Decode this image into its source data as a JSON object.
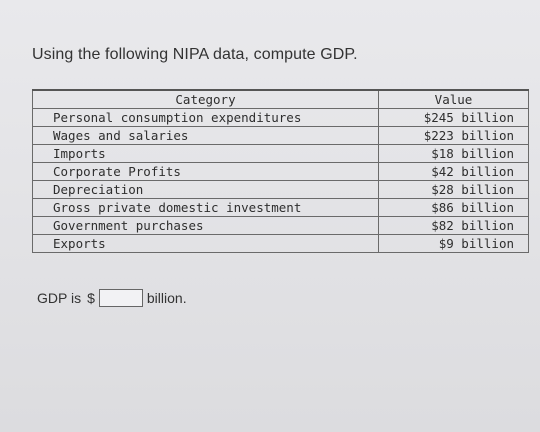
{
  "prompt": "Using the following NIPA data, compute GDP.",
  "table": {
    "headers": [
      "Category",
      "Value"
    ],
    "rows": [
      {
        "category": "Personal consumption expenditures",
        "value": "$245 billion"
      },
      {
        "category": "Wages and salaries",
        "value": "$223 billion"
      },
      {
        "category": "Imports",
        "value": "$18 billion"
      },
      {
        "category": "Corporate Profits",
        "value": "$42 billion"
      },
      {
        "category": "Depreciation",
        "value": "$28 billion"
      },
      {
        "category": "Gross private domestic investment",
        "value": "$86 billion"
      },
      {
        "category": "Government purchases",
        "value": "$82 billion"
      },
      {
        "category": "Exports",
        "value": "$9 billion"
      }
    ]
  },
  "answer": {
    "prefix": "GDP is",
    "currency": "$",
    "value": "",
    "suffix": "billion."
  }
}
